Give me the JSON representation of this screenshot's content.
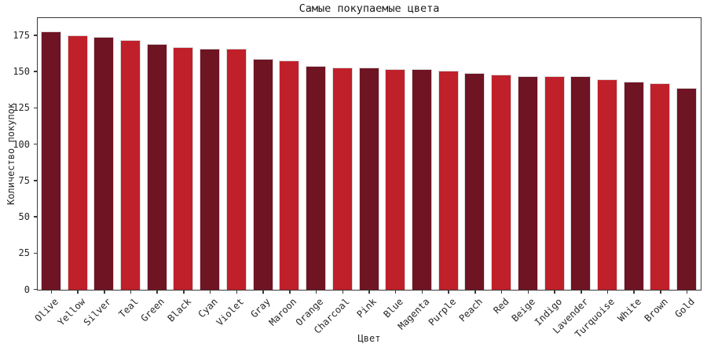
{
  "chart_data": {
    "type": "bar",
    "title": "Самые покупаемые цвета",
    "xlabel": "Цвет",
    "ylabel": "Количество покупок",
    "categories": [
      "Olive",
      "Yellow",
      "Silver",
      "Teal",
      "Green",
      "Black",
      "Cyan",
      "Violet",
      "Gray",
      "Maroon",
      "Orange",
      "Charcoal",
      "Pink",
      "Blue",
      "Magenta",
      "Purple",
      "Peach",
      "Red",
      "Beige",
      "Indigo",
      "Lavender",
      "Turquoise",
      "White",
      "Brown",
      "Gold"
    ],
    "values": [
      178,
      175,
      174,
      172,
      169,
      167,
      166,
      166,
      159,
      158,
      154,
      153,
      153,
      152,
      152,
      151,
      149,
      148,
      147,
      147,
      147,
      145,
      143,
      142,
      139
    ],
    "yticks": [
      0,
      25,
      50,
      75,
      100,
      125,
      150,
      175
    ],
    "ylim": [
      0,
      186.5
    ],
    "grid": false,
    "legend": false,
    "colors": {
      "bar_alternating": [
        "#6e1423",
        "#c0202a"
      ],
      "bar_edge": "#d9d9d9",
      "spine": "#3a3a3a",
      "text": "#262626"
    }
  }
}
